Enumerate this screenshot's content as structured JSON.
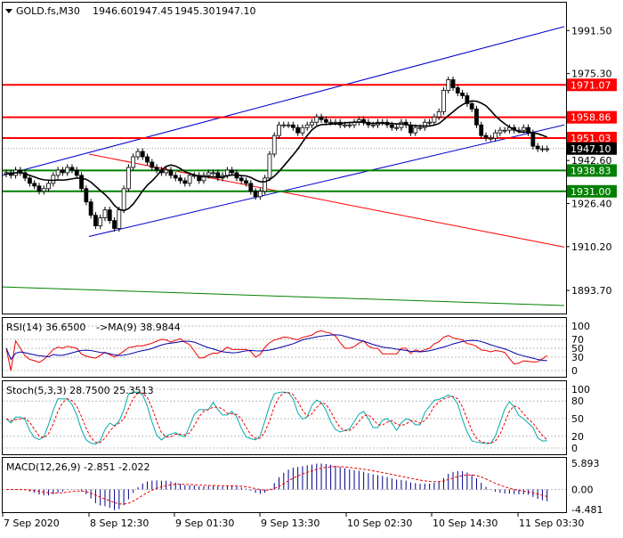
{
  "header": {
    "symbol": "GOLD.fs,M30",
    "open": "1946.60",
    "high": "1947.45",
    "low": "1945.30",
    "close": "1947.10"
  },
  "chart_data": {
    "type": "candlestick",
    "y_ticks": [
      "1991.50",
      "1975.30",
      "1942.60",
      "1926.40",
      "1910.20",
      "1893.70"
    ],
    "y_range": [
      1885,
      2002
    ],
    "x_ticks": [
      "7 Sep 2020",
      "8 Sep 12:30",
      "9 Sep 01:30",
      "9 Sep 13:30",
      "10 Sep 02:30",
      "10 Sep 14:30",
      "11 Sep 03:30"
    ],
    "current_price": "1947.10",
    "levels": [
      {
        "value": 1971.07,
        "label": "1971.07",
        "color": "#ff0000"
      },
      {
        "value": 1958.86,
        "label": "1958.86",
        "color": "#ff0000"
      },
      {
        "value": 1951.03,
        "label": "1951.03",
        "color": "#ff0000"
      },
      {
        "value": 1938.83,
        "label": "1938.83",
        "color": "#008000"
      },
      {
        "value": 1931.0,
        "label": "1931.00",
        "color": "#008000"
      }
    ],
    "closes": [
      1938,
      1937,
      1939,
      1938,
      1936,
      1934,
      1933,
      1931,
      1932,
      1934,
      1937,
      1939,
      1938,
      1940,
      1939,
      1937,
      1932,
      1927,
      1922,
      1918,
      1921,
      1924,
      1920,
      1917,
      1924,
      1932,
      1940,
      1944,
      1946,
      1944,
      1942,
      1940,
      1939,
      1938,
      1939,
      1937,
      1936,
      1935,
      1934,
      1937,
      1937,
      1935,
      1937,
      1938,
      1938,
      1936,
      1937,
      1939,
      1938,
      1936,
      1935,
      1934,
      1931,
      1929,
      1931,
      1936,
      1945,
      1952,
      1956,
      1956,
      1956,
      1955,
      1953,
      1955,
      1956,
      1957,
      1959,
      1958,
      1957,
      1957,
      1957,
      1956,
      1956,
      1956,
      1957,
      1958,
      1957,
      1956,
      1956,
      1957,
      1957,
      1956,
      1955,
      1955,
      1957,
      1956,
      1953,
      1955,
      1955,
      1957,
      1957,
      1959,
      1961,
      1969,
      1973,
      1970,
      1968,
      1967,
      1964,
      1962,
      1956,
      1952,
      1951,
      1951,
      1953,
      1954,
      1954,
      1955,
      1954,
      1954,
      1955,
      1953,
      1948,
      1947,
      1947,
      1947
    ],
    "trend_lines": [
      {
        "color": "#0000cc",
        "from": [
          "8 Sep 12:30",
          1914
        ],
        "to": [
          "11 Sep 03:30",
          1956
        ]
      },
      {
        "color": "#0000cc",
        "from": [
          "7 Sep 2020",
          1937
        ],
        "to": [
          "11 Sep 03:30",
          1993
        ]
      },
      {
        "color": "#ff0000",
        "from": [
          "8 Sep 12:30",
          1945
        ],
        "to": [
          "11 Sep 03:30",
          1910
        ]
      },
      {
        "color": "#008000",
        "from": [
          "7 Sep 2020",
          1895
        ],
        "to": [
          "11 Sep 03:30",
          1888
        ]
      }
    ],
    "indicators": {
      "rsi": {
        "label": "RSI(14) 36.6500",
        "ma_label": "->MA(9) 38.9844",
        "ticks": [
          "100",
          "70",
          "50",
          "30",
          "0"
        ]
      },
      "stoch": {
        "label": "Stoch(5,3,3) 28.7500 25.3513",
        "ticks": [
          "100",
          "80",
          "50",
          "20",
          "0"
        ]
      },
      "macd": {
        "label": "MACD(12,26,9) -2.851 -2.022",
        "ticks": [
          "5.893",
          "0.00",
          "-4.481"
        ]
      }
    }
  }
}
